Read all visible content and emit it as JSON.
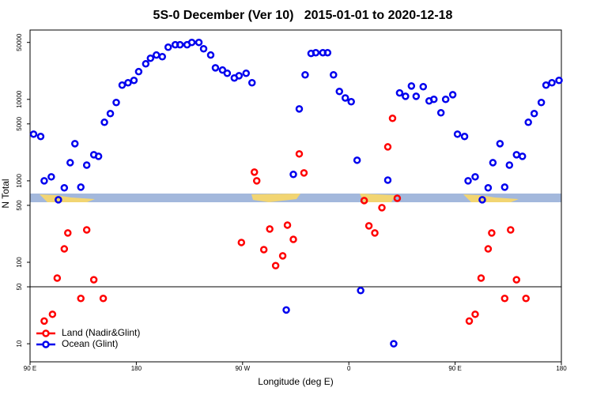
{
  "chart_data": {
    "type": "scatter",
    "title": "5S-0 December (Ver 10)   2015-01-01 to 2020-12-18",
    "x_label": "Longitude (deg E)",
    "y_label": "N Total",
    "log_y": true,
    "xlim": [
      90,
      540
    ],
    "ylim": [
      6,
      71000
    ],
    "xticks": [
      {
        "value": 90,
        "label": "90 E"
      },
      180,
      {
        "value": 270,
        "label": "90 W"
      },
      {
        "value": 360,
        "label": "0"
      },
      {
        "value": 450,
        "label": "90 E"
      },
      {
        "value": 540,
        "label": "180"
      }
    ],
    "yticks": [
      10,
      50,
      100,
      500,
      1000,
      5000,
      10000,
      50000
    ],
    "hline": 50,
    "legend": "bottom-left",
    "series": [
      {
        "name": "Land (Nadir&Glint)",
        "color": "#ff0000",
        "x": [
          102,
          109,
          113,
          119,
          122,
          133,
          138,
          144,
          152,
          269,
          280,
          282,
          288,
          293,
          298,
          304,
          308,
          313,
          318,
          322,
          373,
          377,
          382,
          388,
          393,
          397,
          401,
          462,
          467,
          472,
          478,
          481,
          492,
          497,
          502,
          510
        ],
        "values": [
          19,
          23,
          64,
          146,
          229,
          36,
          250,
          61,
          36,
          175,
          1280,
          1000,
          143,
          256,
          91,
          120,
          286,
          191,
          2140,
          1250,
          572,
          280,
          229,
          468,
          2610,
          5850,
          611,
          19,
          23,
          64,
          146,
          229,
          36,
          250,
          61,
          36
        ]
      },
      {
        "name": "Ocean (Glint)",
        "color": "#0000ee",
        "x": [
          93,
          99,
          102,
          108,
          114,
          119,
          124,
          128,
          133,
          138,
          144,
          148,
          153,
          158,
          163,
          168,
          173,
          178,
          182,
          188,
          192,
          197,
          202,
          207,
          213,
          217,
          223,
          227,
          233,
          237,
          243,
          247,
          253,
          257,
          263,
          267,
          273,
          278,
          307,
          313,
          318,
          323,
          328,
          332,
          338,
          342,
          347,
          352,
          357,
          362,
          367,
          370,
          393,
          398,
          403,
          408,
          413,
          417,
          423,
          428,
          432,
          438,
          442,
          448,
          452,
          458,
          461,
          467,
          473,
          478,
          482,
          488,
          492,
          496,
          502,
          507,
          512,
          517,
          523,
          527,
          532,
          538
        ],
        "values": [
          3740,
          3500,
          1000,
          1120,
          585,
          820,
          1670,
          2860,
          836,
          1560,
          2090,
          2000,
          5230,
          6690,
          9150,
          14960,
          16000,
          17100,
          21900,
          27300,
          32000,
          35000,
          33400,
          43700,
          46800,
          46800,
          46800,
          50000,
          50000,
          41800,
          35000,
          24400,
          22900,
          20900,
          18300,
          19500,
          20900,
          16000,
          26,
          1200,
          7640,
          20000,
          36600,
          37400,
          37400,
          37400,
          20000,
          12500,
          10400,
          9350,
          1790,
          45,
          1020,
          10,
          12000,
          10900,
          14600,
          10900,
          14300,
          9570,
          10000,
          6840,
          10000,
          11400,
          3740,
          3500,
          1000,
          1120,
          585,
          820,
          1670,
          2860,
          836,
          1560,
          2090,
          2000,
          5230,
          6690,
          9150,
          14960,
          16000,
          17100
        ]
      }
    ]
  }
}
